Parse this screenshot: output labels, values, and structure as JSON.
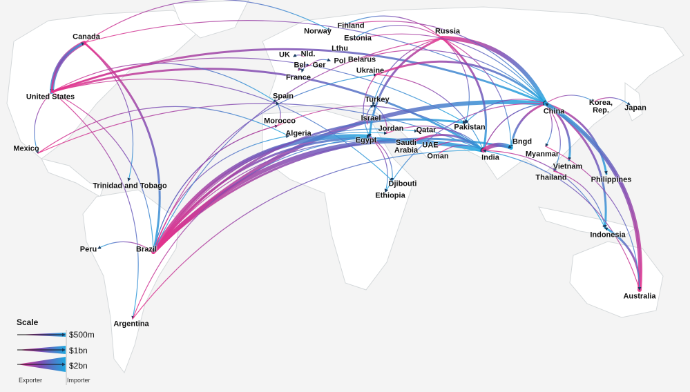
{
  "colors": {
    "exporter": "#e8308a",
    "mid": "#7a4fb5",
    "importer": "#1ea8e0",
    "land": "#ffffff",
    "border": "#d4d8da",
    "ocean": "#f2f2f2"
  },
  "legend": {
    "title": "Scale",
    "levels": [
      {
        "label": "$500m",
        "value_usd": 500000000
      },
      {
        "label": "$1bn",
        "value_usd": 1000000000
      },
      {
        "label": "$2bn",
        "value_usd": 2000000000
      }
    ],
    "exporter_label": "Exporter",
    "importer_label": "Importer"
  },
  "countries": [
    {
      "id": "canada",
      "label": "Canada"
    },
    {
      "id": "us",
      "label": "United States"
    },
    {
      "id": "mexico",
      "label": "Mexico"
    },
    {
      "id": "tt",
      "label": "Trinidad and Tobago"
    },
    {
      "id": "peru",
      "label": "Peru"
    },
    {
      "id": "brazil",
      "label": "Brazil"
    },
    {
      "id": "argentina",
      "label": "Argentina"
    },
    {
      "id": "norway",
      "label": "Norway"
    },
    {
      "id": "finland",
      "label": "Finland"
    },
    {
      "id": "estonia",
      "label": "Estonia"
    },
    {
      "id": "russia",
      "label": "Russia"
    },
    {
      "id": "lthu",
      "label": "Lthu"
    },
    {
      "id": "uk",
      "label": "UK"
    },
    {
      "id": "nld",
      "label": "Nld."
    },
    {
      "id": "bel",
      "label": "Bel"
    },
    {
      "id": "ger",
      "label": "Ger"
    },
    {
      "id": "pol",
      "label": "Pol"
    },
    {
      "id": "belarus",
      "label": "Belarus"
    },
    {
      "id": "france",
      "label": "France"
    },
    {
      "id": "ukraine",
      "label": "Ukraine"
    },
    {
      "id": "spain",
      "label": "Spain"
    },
    {
      "id": "turkey",
      "label": "Turkey"
    },
    {
      "id": "israel",
      "label": "Israel"
    },
    {
      "id": "morocco",
      "label": "Morocco"
    },
    {
      "id": "algeria",
      "label": "Algeria"
    },
    {
      "id": "jordan",
      "label": "Jordan"
    },
    {
      "id": "qatar",
      "label": "Qatar"
    },
    {
      "id": "egypt",
      "label": "Egypt"
    },
    {
      "id": "saudi",
      "label": "Saudi Arabia"
    },
    {
      "id": "uae",
      "label": "UAE"
    },
    {
      "id": "oman",
      "label": "Oman"
    },
    {
      "id": "pakistan",
      "label": "Pakistan"
    },
    {
      "id": "india",
      "label": "India"
    },
    {
      "id": "bngd",
      "label": "Bngd"
    },
    {
      "id": "china",
      "label": "China"
    },
    {
      "id": "korea",
      "label": "Korea, Rep."
    },
    {
      "id": "japan",
      "label": "Japan"
    },
    {
      "id": "myanmar",
      "label": "Myanmar"
    },
    {
      "id": "vietnam",
      "label": "Vietnam"
    },
    {
      "id": "thailand",
      "label": "Thailand"
    },
    {
      "id": "philippines",
      "label": "Philippines"
    },
    {
      "id": "indonesia",
      "label": "Indonesia"
    },
    {
      "id": "australia",
      "label": "Australia"
    },
    {
      "id": "djibouti",
      "label": "Djibouti"
    },
    {
      "id": "ethiopia",
      "label": "Ethiopia"
    }
  ],
  "flows": [
    {
      "from": "canada",
      "to": "us",
      "size": 3
    },
    {
      "from": "us",
      "to": "canada",
      "size": 2
    },
    {
      "from": "canada",
      "to": "brazil",
      "size": 2
    },
    {
      "from": "canada",
      "to": "china",
      "size": 1
    },
    {
      "from": "canada",
      "to": "tt",
      "size": 1
    },
    {
      "from": "canada",
      "to": "norway",
      "size": 1
    },
    {
      "from": "us",
      "to": "mexico",
      "size": 1
    },
    {
      "from": "us",
      "to": "china",
      "size": 2
    },
    {
      "from": "us",
      "to": "india",
      "size": 2
    },
    {
      "from": "us",
      "to": "brazil",
      "size": 1
    },
    {
      "from": "us",
      "to": "pakistan",
      "size": 1
    },
    {
      "from": "us",
      "to": "argentina",
      "size": 1
    },
    {
      "from": "us",
      "to": "spain",
      "size": 1
    },
    {
      "from": "us",
      "to": "djibouti",
      "size": 1
    },
    {
      "from": "mexico",
      "to": "india",
      "size": 1
    },
    {
      "from": "mexico",
      "to": "algeria",
      "size": 1
    },
    {
      "from": "brazil",
      "to": "china",
      "size": 3
    },
    {
      "from": "brazil",
      "to": "india",
      "size": 3
    },
    {
      "from": "brazil",
      "to": "egypt",
      "size": 3
    },
    {
      "from": "brazil",
      "to": "saudi",
      "size": 2
    },
    {
      "from": "brazil",
      "to": "bngd",
      "size": 2
    },
    {
      "from": "brazil",
      "to": "peru",
      "size": 1
    },
    {
      "from": "brazil",
      "to": "jordan",
      "size": 1
    },
    {
      "from": "brazil",
      "to": "morocco",
      "size": 1
    },
    {
      "from": "brazil",
      "to": "algeria",
      "size": 1
    },
    {
      "from": "brazil",
      "to": "uae",
      "size": 1
    },
    {
      "from": "brazil",
      "to": "pakistan",
      "size": 2
    },
    {
      "from": "brazil",
      "to": "qatar",
      "size": 1
    },
    {
      "from": "brazil",
      "to": "ukraine",
      "size": 1
    },
    {
      "from": "argentina",
      "to": "india",
      "size": 1
    },
    {
      "from": "argentina",
      "to": "egypt",
      "size": 1
    },
    {
      "from": "russia",
      "to": "china",
      "size": 3
    },
    {
      "from": "russia",
      "to": "india",
      "size": 2
    },
    {
      "from": "russia",
      "to": "egypt",
      "size": 2
    },
    {
      "from": "russia",
      "to": "turkey",
      "size": 1
    },
    {
      "from": "russia",
      "to": "pakistan",
      "size": 1
    },
    {
      "from": "russia",
      "to": "bngd",
      "size": 1
    },
    {
      "from": "russia",
      "to": "estonia",
      "size": 1
    },
    {
      "from": "russia",
      "to": "finland",
      "size": 1
    },
    {
      "from": "russia",
      "to": "brazil",
      "size": 1
    },
    {
      "from": "ukraine",
      "to": "china",
      "size": 2
    },
    {
      "from": "ukraine",
      "to": "india",
      "size": 1
    },
    {
      "from": "ukraine",
      "to": "egypt",
      "size": 1
    },
    {
      "from": "belarus",
      "to": "china",
      "size": 1
    },
    {
      "from": "estonia",
      "to": "china",
      "size": 1
    },
    {
      "from": "finland",
      "to": "china",
      "size": 1
    },
    {
      "from": "nld",
      "to": "uk",
      "size": 1
    },
    {
      "from": "ger",
      "to": "bel",
      "size": 1
    },
    {
      "from": "bel",
      "to": "ger",
      "size": 1
    },
    {
      "from": "ger",
      "to": "pol",
      "size": 1
    },
    {
      "from": "ger",
      "to": "france",
      "size": 1
    },
    {
      "from": "morocco",
      "to": "spain",
      "size": 1
    },
    {
      "from": "morocco",
      "to": "india",
      "size": 1
    },
    {
      "from": "morocco",
      "to": "brazil",
      "size": 1
    },
    {
      "from": "israel",
      "to": "turkey",
      "size": 1
    },
    {
      "from": "jordan",
      "to": "turkey",
      "size": 1
    },
    {
      "from": "jordan",
      "to": "india",
      "size": 1
    },
    {
      "from": "qatar",
      "to": "india",
      "size": 1
    },
    {
      "from": "saudi",
      "to": "india",
      "size": 2
    },
    {
      "from": "uae",
      "to": "india",
      "size": 1
    },
    {
      "from": "oman",
      "to": "india",
      "size": 1
    },
    {
      "from": "egypt",
      "to": "djibouti",
      "size": 1
    },
    {
      "from": "egypt",
      "to": "ethiopia",
      "size": 1
    },
    {
      "from": "china",
      "to": "bngd",
      "size": 2
    },
    {
      "from": "china",
      "to": "myanmar",
      "size": 1
    },
    {
      "from": "china",
      "to": "vietnam",
      "size": 2
    },
    {
      "from": "china",
      "to": "thailand",
      "size": 1
    },
    {
      "from": "china",
      "to": "philippines",
      "size": 2
    },
    {
      "from": "china",
      "to": "indonesia",
      "size": 2
    },
    {
      "from": "china",
      "to": "australia",
      "size": 1
    },
    {
      "from": "china",
      "to": "korea",
      "size": 1
    },
    {
      "from": "korea",
      "to": "japan",
      "size": 1
    },
    {
      "from": "china",
      "to": "india",
      "size": 1
    },
    {
      "from": "china",
      "to": "pakistan",
      "size": 1
    },
    {
      "from": "china",
      "to": "ethiopia",
      "size": 1
    },
    {
      "from": "india",
      "to": "bngd",
      "size": 3
    },
    {
      "from": "india",
      "to": "indonesia",
      "size": 1
    },
    {
      "from": "india",
      "to": "china",
      "size": 1
    },
    {
      "from": "thailand",
      "to": "indonesia",
      "size": 1
    },
    {
      "from": "australia",
      "to": "china",
      "size": 3
    },
    {
      "from": "australia",
      "to": "india",
      "size": 1
    },
    {
      "from": "australia",
      "to": "indonesia",
      "size": 2
    },
    {
      "from": "myanmar",
      "to": "australia",
      "size": 1
    }
  ]
}
